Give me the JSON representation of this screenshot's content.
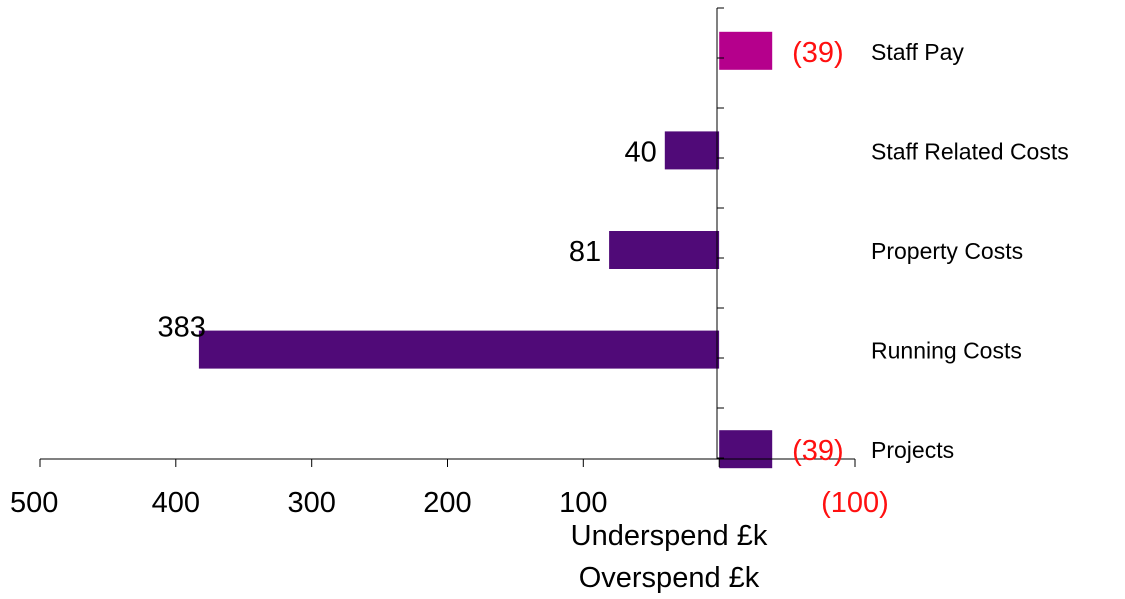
{
  "chart_data": {
    "type": "bar",
    "orientation": "horizontal",
    "categories": [
      "Staff Pay",
      "Staff Related Costs",
      "Property Costs",
      "Running Costs",
      "Projects"
    ],
    "values": [
      -39,
      40,
      81,
      383,
      -39
    ],
    "data_labels": [
      "(39)",
      "40",
      "81",
      "383",
      "(39)"
    ],
    "bar_colors": [
      "#B5008C",
      "#500A78",
      "#500A78",
      "#500A78",
      "#500A78"
    ],
    "label_colors": [
      "#FF1010",
      "#000000",
      "#000000",
      "#000000",
      "#FF1010"
    ],
    "xlim": [
      500,
      -100
    ],
    "x_ticks": [
      500,
      400,
      300,
      200,
      100,
      0,
      -100
    ],
    "x_tick_labels": [
      "500",
      "400",
      "300",
      "200",
      "100",
      "",
      "(100)"
    ],
    "x_tick_label_colors": [
      "#000000",
      "#000000",
      "#000000",
      "#000000",
      "#000000",
      "#000000",
      "#FF1010"
    ],
    "xlabel_lines": [
      "Underspend £k",
      "Overspend £k"
    ],
    "title": "",
    "ylabel": "",
    "grid": false,
    "legend": "none"
  }
}
